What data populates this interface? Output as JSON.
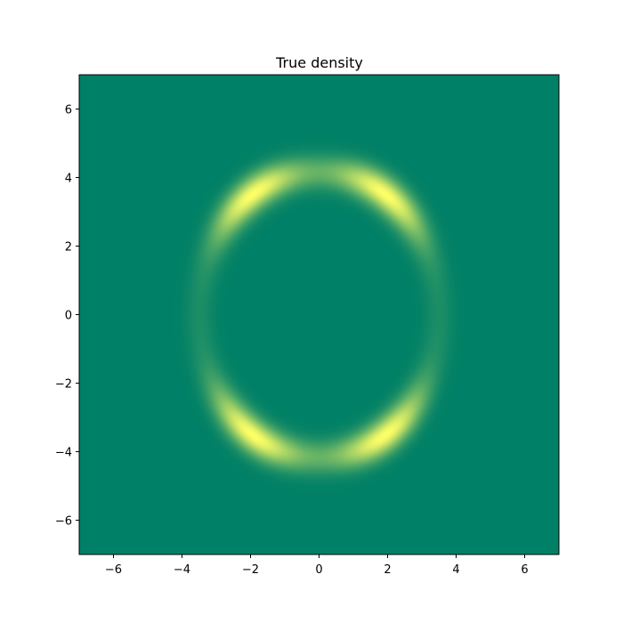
{
  "chart_data": {
    "type": "heatmap",
    "title": "True density",
    "xlabel": "",
    "ylabel": "",
    "xlim": [
      -7,
      7
    ],
    "ylim": [
      -7,
      7
    ],
    "x_ticks": [
      -6,
      -4,
      -2,
      0,
      2,
      4,
      6
    ],
    "y_ticks": [
      -6,
      -4,
      -2,
      0,
      2,
      4,
      6
    ],
    "x_tick_labels": [
      "−6",
      "−4",
      "−2",
      "0",
      "2",
      "4",
      "6"
    ],
    "y_tick_labels": [
      "−6",
      "−4",
      "−2",
      "0",
      "2",
      "4",
      "6"
    ],
    "grid": false,
    "colormap": "summer",
    "colormap_low": "#008066",
    "colormap_high": "#ffff66",
    "density": {
      "shape": "ring",
      "center": [
        0,
        0
      ],
      "radius_x": 3.5,
      "radius_y": 4.2,
      "modes": [
        {
          "x": -2.0,
          "y": 3.6
        },
        {
          "x": 2.0,
          "y": 3.6
        },
        {
          "x": -2.0,
          "y": -3.6
        },
        {
          "x": 2.0,
          "y": -3.6
        }
      ]
    }
  }
}
